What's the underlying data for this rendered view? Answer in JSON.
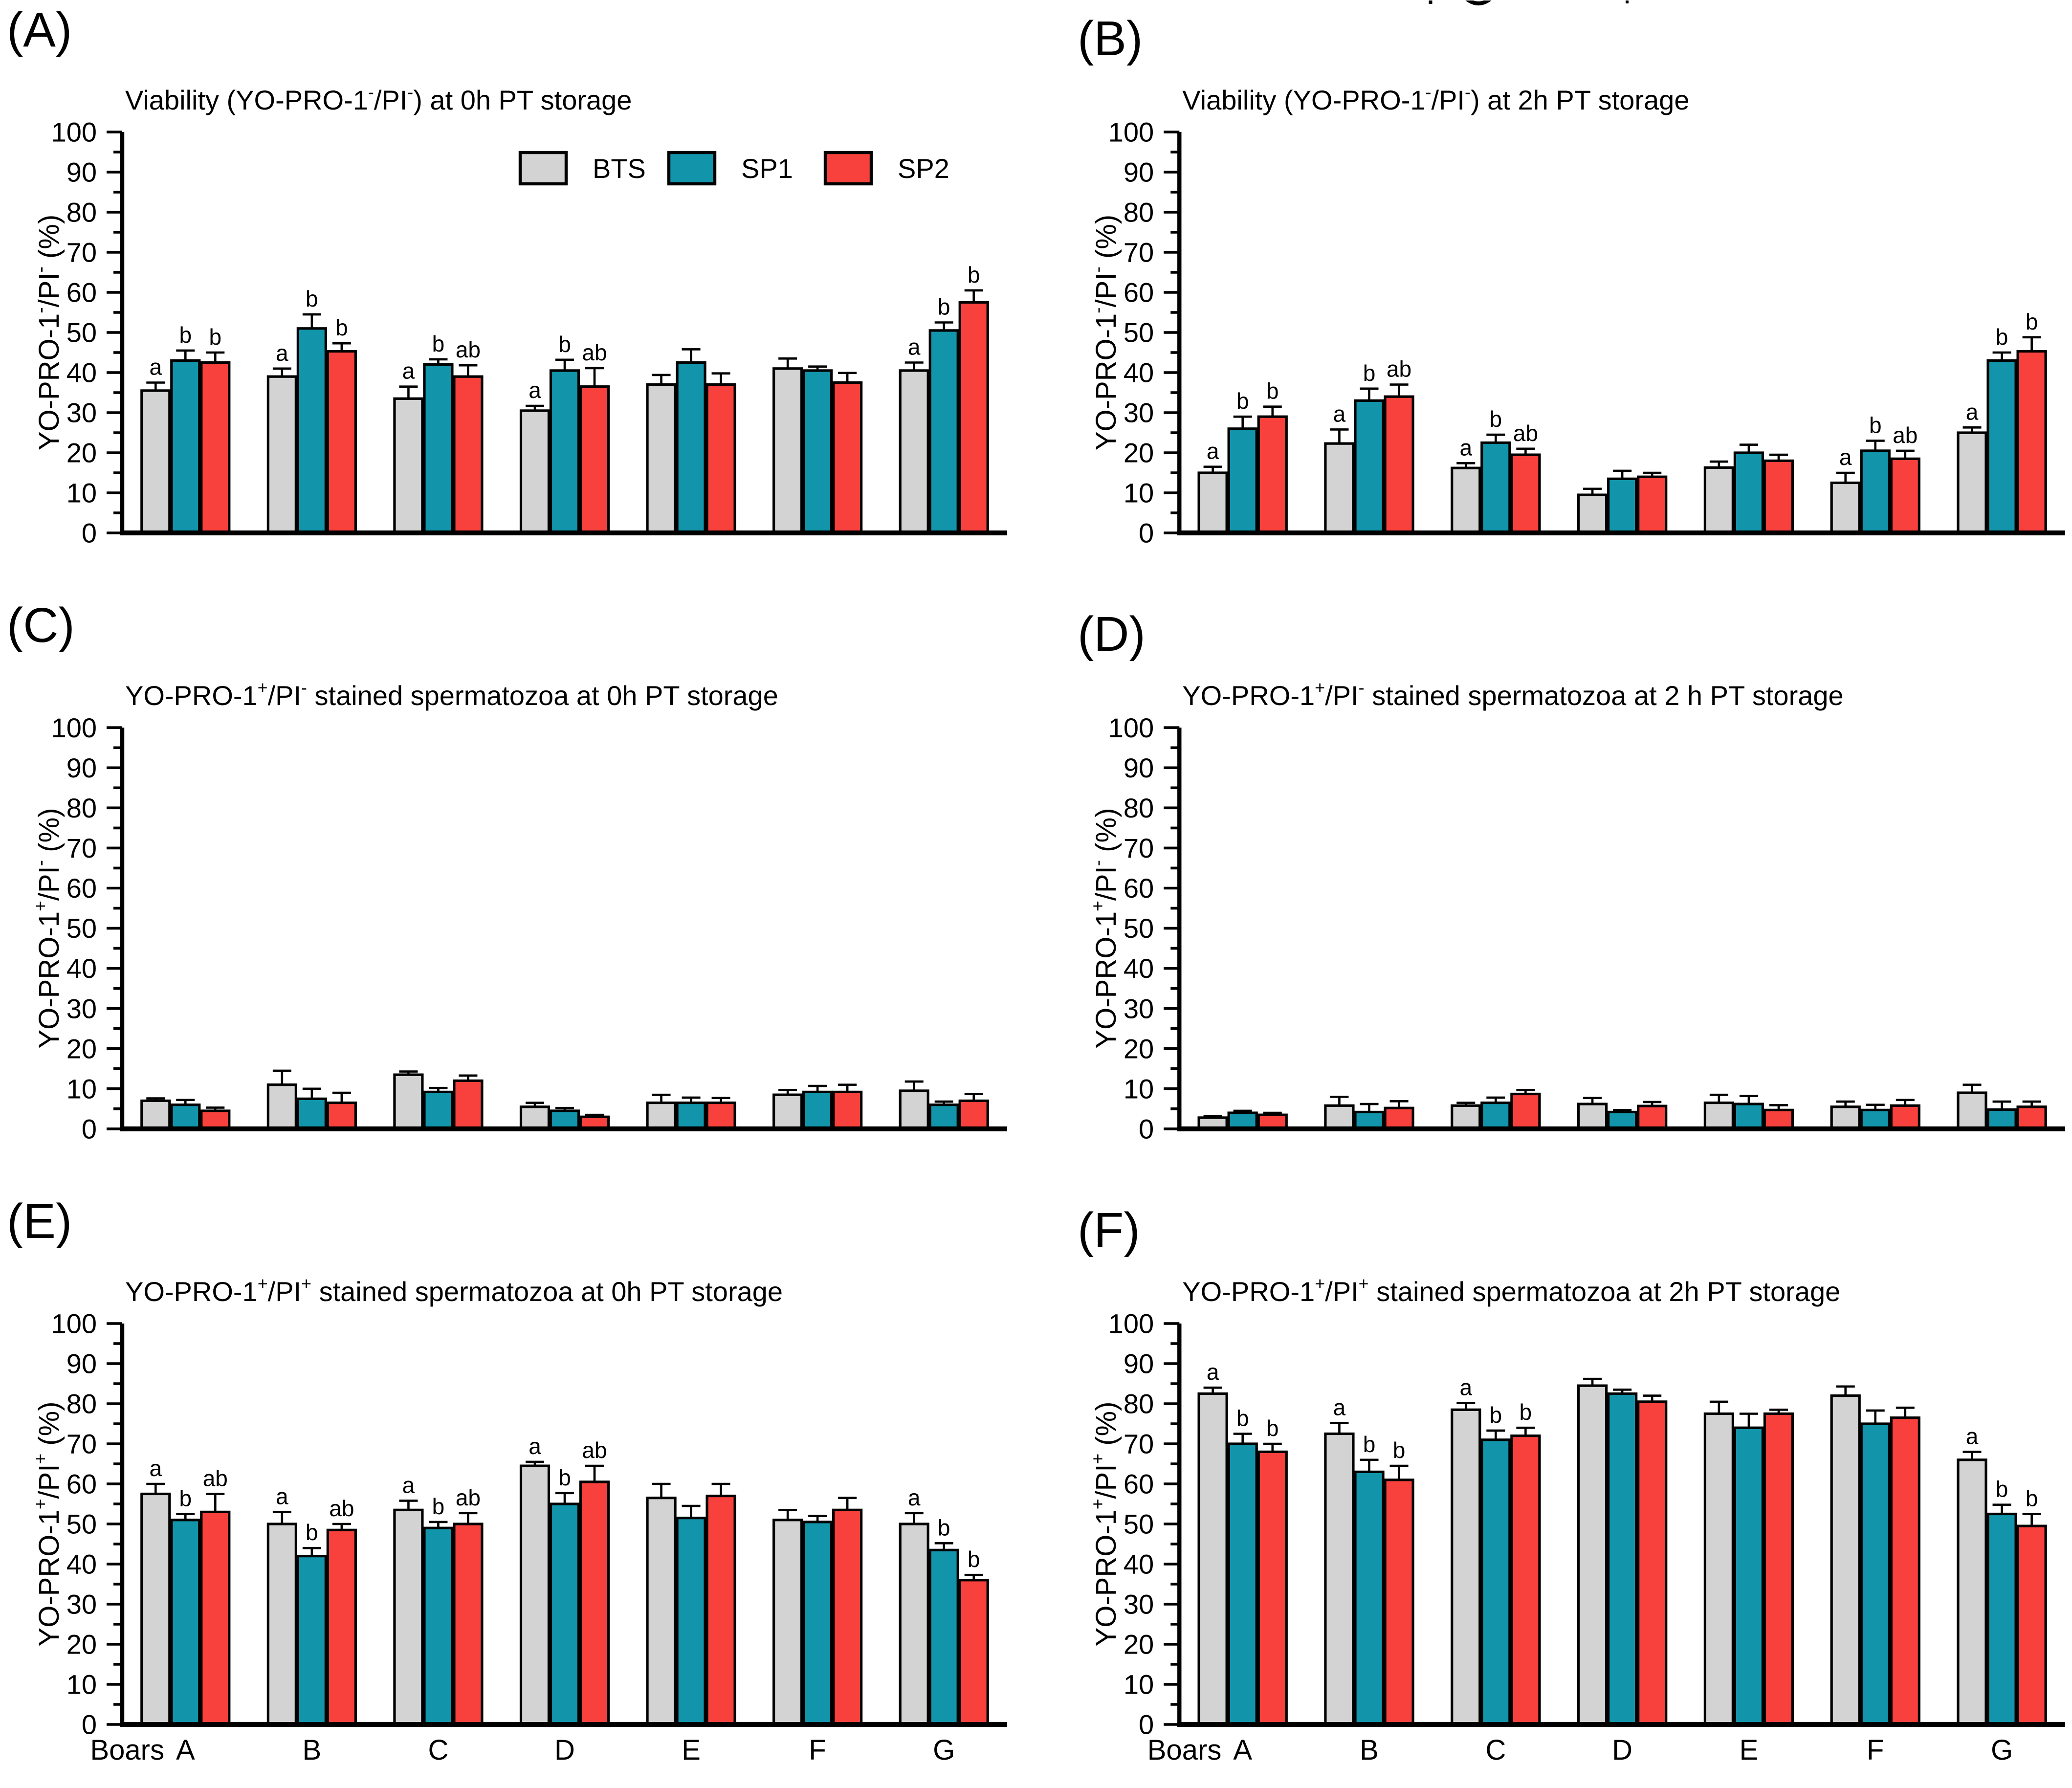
{
  "figure": {
    "background": "#ffffff",
    "bar_outline": "#000000",
    "panel_letters": [
      "(A)",
      "(B)",
      "(C)",
      "(D)",
      "(E)",
      "(F)"
    ],
    "x_axis_prefix": "Boars",
    "top_artifact_note": "clipped glyph fragments from line above"
  },
  "legend": {
    "entries": [
      {
        "label": "BTS",
        "color": "#d3d3d3"
      },
      {
        "label": "SP1",
        "color": "#1295aa"
      },
      {
        "label": "SP2",
        "color": "#f8413d"
      }
    ]
  },
  "chart_data": [
    {
      "panel": "(A)",
      "type": "bar",
      "title": "Viability (YO-PRO-1⁻/PI⁻) at 0h PT storage",
      "title_segments": [
        {
          "t": "Viability (YO-PRO-1"
        },
        {
          "t": "-",
          "sup": true
        },
        {
          "t": "/PI"
        },
        {
          "t": "-",
          "sup": true
        },
        {
          "t": ") at 0h PT storage"
        }
      ],
      "ylabel": "YO-PRO-1⁻/PI⁻ (%)",
      "ylabel_segments": [
        {
          "t": "YO-PRO-1"
        },
        {
          "t": "-",
          "sup": true
        },
        {
          "t": "/PI"
        },
        {
          "t": "-",
          "sup": true
        },
        {
          "t": " (%)"
        }
      ],
      "categories": [
        "A",
        "B",
        "C",
        "D",
        "E",
        "F",
        "G"
      ],
      "ylim": [
        0,
        100
      ],
      "ytick_step": 10,
      "yminor_step": 5,
      "grid": false,
      "legend_visible": true,
      "show_x_labels": false,
      "x_prefix": "Boars",
      "series": [
        {
          "name": "BTS",
          "color": "#d3d3d3",
          "values": [
            35.5,
            39,
            33.5,
            30.5,
            37,
            41,
            40.5
          ],
          "errors": [
            2,
            2,
            3,
            1.2,
            2.4,
            2.5,
            2
          ],
          "sig_letters": [
            "a",
            "a",
            "a",
            "a",
            "",
            "",
            "a"
          ]
        },
        {
          "name": "SP1",
          "color": "#1295aa",
          "values": [
            43,
            51,
            42,
            40.5,
            42.5,
            40.5,
            50.5
          ],
          "errors": [
            2.5,
            3.5,
            1.3,
            2.7,
            3.3,
            1,
            2
          ],
          "sig_letters": [
            "b",
            "b",
            "b",
            "b",
            "",
            "",
            "b"
          ]
        },
        {
          "name": "SP2",
          "color": "#f8413d",
          "values": [
            42.5,
            45.3,
            39,
            36.5,
            37,
            37.5,
            57.5
          ],
          "errors": [
            2.5,
            2,
            2.8,
            4.6,
            2.8,
            2.4,
            3
          ],
          "sig_letters": [
            "b",
            "b",
            "ab",
            "ab",
            "",
            "",
            "b"
          ]
        }
      ]
    },
    {
      "panel": "(B)",
      "type": "bar",
      "title": "Viability (YO-PRO-1⁻/PI⁻) at 2h PT storage",
      "title_segments": [
        {
          "t": "Viability (YO-PRO-1"
        },
        {
          "t": "-",
          "sup": true
        },
        {
          "t": "/PI"
        },
        {
          "t": "-",
          "sup": true
        },
        {
          "t": ") at 2h PT storage"
        }
      ],
      "ylabel": "YO-PRO-1⁻/PI⁻ (%)",
      "ylabel_segments": [
        {
          "t": "YO-PRO-1"
        },
        {
          "t": "-",
          "sup": true
        },
        {
          "t": "/PI"
        },
        {
          "t": "-",
          "sup": true
        },
        {
          "t": " (%)"
        }
      ],
      "categories": [
        "A",
        "B",
        "C",
        "D",
        "E",
        "F",
        "G"
      ],
      "ylim": [
        0,
        100
      ],
      "ytick_step": 10,
      "yminor_step": 5,
      "grid": false,
      "legend_visible": false,
      "show_x_labels": false,
      "x_prefix": "Boars",
      "series": [
        {
          "name": "BTS",
          "color": "#d3d3d3",
          "values": [
            15,
            22.3,
            16.2,
            9.5,
            16.3,
            12.5,
            25
          ],
          "errors": [
            1.5,
            3.5,
            1.2,
            1.5,
            1.5,
            2.5,
            1.3
          ],
          "sig_letters": [
            "a",
            "a",
            "a",
            "",
            "",
            "a",
            "a"
          ]
        },
        {
          "name": "SP1",
          "color": "#1295aa",
          "values": [
            26,
            33,
            22.5,
            13.5,
            20,
            20.5,
            43
          ],
          "errors": [
            3,
            3,
            2,
            2,
            2,
            2.5,
            2
          ],
          "sig_letters": [
            "b",
            "b",
            "b",
            "",
            "",
            "b",
            "b"
          ]
        },
        {
          "name": "SP2",
          "color": "#f8413d",
          "values": [
            29,
            34,
            19.5,
            14,
            18,
            18.5,
            45.3
          ],
          "errors": [
            2.5,
            3,
            1.5,
            1,
            1.5,
            2,
            3.5
          ],
          "sig_letters": [
            "b",
            "ab",
            "ab",
            "",
            "",
            "ab",
            "b"
          ]
        }
      ]
    },
    {
      "panel": "(C)",
      "type": "bar",
      "title": "YO-PRO-1⁺/PI⁻ stained spermatozoa at 0h PT storage",
      "title_segments": [
        {
          "t": "YO-PRO-1"
        },
        {
          "t": "+",
          "sup": true
        },
        {
          "t": "/PI"
        },
        {
          "t": "-",
          "sup": true
        },
        {
          "t": " stained spermatozoa at 0h PT storage"
        }
      ],
      "ylabel": "YO-PRO-1⁺/PI⁻ (%)",
      "ylabel_segments": [
        {
          "t": "YO-PRO-1"
        },
        {
          "t": "+",
          "sup": true
        },
        {
          "t": "/PI"
        },
        {
          "t": "-",
          "sup": true
        },
        {
          "t": " (%)"
        }
      ],
      "categories": [
        "A",
        "B",
        "C",
        "D",
        "E",
        "F",
        "G"
      ],
      "ylim": [
        0,
        100
      ],
      "ytick_step": 10,
      "yminor_step": 5,
      "grid": false,
      "legend_visible": false,
      "show_x_labels": false,
      "x_prefix": "Boars",
      "series": [
        {
          "name": "BTS",
          "color": "#d3d3d3",
          "values": [
            7,
            11,
            13.5,
            5.5,
            6.5,
            8.5,
            9.5
          ],
          "errors": [
            0.6,
            3.5,
            0.8,
            1,
            2,
            1.2,
            2.3
          ],
          "sig_letters": [
            "",
            "",
            "",
            "",
            "",
            "",
            ""
          ]
        },
        {
          "name": "SP1",
          "color": "#1295aa",
          "values": [
            6,
            7.5,
            9.2,
            4.5,
            6.5,
            9.2,
            6
          ],
          "errors": [
            1.2,
            2.5,
            1,
            0.7,
            1.3,
            1.5,
            0.8
          ],
          "sig_letters": [
            "",
            "",
            "",
            "",
            "",
            "",
            ""
          ]
        },
        {
          "name": "SP2",
          "color": "#f8413d",
          "values": [
            4.5,
            6.5,
            12,
            3,
            6.5,
            9.2,
            7
          ],
          "errors": [
            0.8,
            2.5,
            1.3,
            0.5,
            1.2,
            1.8,
            1.7
          ],
          "sig_letters": [
            "",
            "",
            "",
            "",
            "",
            "",
            ""
          ]
        }
      ]
    },
    {
      "panel": "(D)",
      "type": "bar",
      "title": "YO-PRO-1⁺/PI⁻ stained spermatozoa at 2 h PT storage",
      "title_segments": [
        {
          "t": "YO-PRO-1"
        },
        {
          "t": "+",
          "sup": true
        },
        {
          "t": "/PI"
        },
        {
          "t": "-",
          "sup": true
        },
        {
          "t": " stained spermatozoa at 2 h PT storage"
        }
      ],
      "ylabel": "YO-PRO-1⁺/PI⁻ (%)",
      "ylabel_segments": [
        {
          "t": "YO-PRO-1"
        },
        {
          "t": "+",
          "sup": true
        },
        {
          "t": "/PI"
        },
        {
          "t": "-",
          "sup": true
        },
        {
          "t": " (%)"
        }
      ],
      "categories": [
        "A",
        "B",
        "C",
        "D",
        "E",
        "F",
        "G"
      ],
      "ylim": [
        0,
        100
      ],
      "ytick_step": 10,
      "yminor_step": 5,
      "grid": false,
      "legend_visible": false,
      "show_x_labels": false,
      "x_prefix": "Boars",
      "series": [
        {
          "name": "BTS",
          "color": "#d3d3d3",
          "values": [
            2.8,
            5.8,
            5.8,
            6.2,
            6.5,
            5.5,
            9
          ],
          "errors": [
            0.4,
            2.2,
            0.7,
            1.5,
            2,
            1.3,
            2
          ],
          "sig_letters": [
            "",
            "",
            "",
            "",
            "",
            "",
            ""
          ]
        },
        {
          "name": "SP1",
          "color": "#1295aa",
          "values": [
            4,
            4.2,
            6.5,
            4.2,
            6.2,
            4.7,
            4.8
          ],
          "errors": [
            0.5,
            2,
            1.3,
            0.5,
            2,
            1.3,
            2
          ],
          "sig_letters": [
            "",
            "",
            "",
            "",
            "",
            "",
            ""
          ]
        },
        {
          "name": "SP2",
          "color": "#f8413d",
          "values": [
            3.5,
            5.2,
            8.7,
            5.7,
            4.7,
            5.8,
            5.5
          ],
          "errors": [
            0.5,
            1.7,
            1,
            1,
            1.2,
            1.4,
            1.3
          ],
          "sig_letters": [
            "",
            "",
            "",
            "",
            "",
            "",
            ""
          ]
        }
      ]
    },
    {
      "panel": "(E)",
      "type": "bar",
      "title": "YO-PRO-1⁺/PI⁺ stained spermatozoa at 0h PT storage",
      "title_segments": [
        {
          "t": "YO-PRO-1"
        },
        {
          "t": "+",
          "sup": true
        },
        {
          "t": "/PI"
        },
        {
          "t": "+",
          "sup": true
        },
        {
          "t": " stained spermatozoa at 0h PT storage"
        }
      ],
      "ylabel": "YO-PRO-1⁺/PI⁺ (%)",
      "ylabel_segments": [
        {
          "t": "YO-PRO-1"
        },
        {
          "t": "+",
          "sup": true
        },
        {
          "t": "/PI"
        },
        {
          "t": "+",
          "sup": true
        },
        {
          "t": " (%)"
        }
      ],
      "categories": [
        "A",
        "B",
        "C",
        "D",
        "E",
        "F",
        "G"
      ],
      "ylim": [
        0,
        100
      ],
      "ytick_step": 10,
      "yminor_step": 5,
      "grid": false,
      "legend_visible": false,
      "show_x_labels": true,
      "x_prefix": "Boars",
      "series": [
        {
          "name": "BTS",
          "color": "#d3d3d3",
          "values": [
            57.5,
            50,
            53.5,
            64.5,
            56.5,
            51,
            50
          ],
          "errors": [
            2.5,
            3,
            2.3,
            1,
            3.5,
            2.5,
            2.7
          ],
          "sig_letters": [
            "a",
            "a",
            "a",
            "a",
            "",
            "",
            "a"
          ]
        },
        {
          "name": "SP1",
          "color": "#1295aa",
          "values": [
            51,
            42,
            49,
            55,
            51.5,
            50.5,
            43.5
          ],
          "errors": [
            1.5,
            2,
            1.5,
            2.7,
            3,
            1.5,
            1.7
          ],
          "sig_letters": [
            "b",
            "b",
            "b",
            "b",
            "",
            "",
            "b"
          ]
        },
        {
          "name": "SP2",
          "color": "#f8413d",
          "values": [
            53,
            48.5,
            50,
            60.5,
            57,
            53.5,
            36
          ],
          "errors": [
            4.5,
            1.5,
            2.7,
            4,
            3,
            3,
            1.3
          ],
          "sig_letters": [
            "ab",
            "ab",
            "ab",
            "ab",
            "",
            "",
            "b"
          ]
        }
      ]
    },
    {
      "panel": "(F)",
      "type": "bar",
      "title": "YO-PRO-1⁺/PI⁺ stained spermatozoa at 2h PT storage",
      "title_segments": [
        {
          "t": "YO-PRO-1"
        },
        {
          "t": "+",
          "sup": true
        },
        {
          "t": "/PI"
        },
        {
          "t": "+",
          "sup": true
        },
        {
          "t": " stained spermatozoa at 2h PT storage"
        }
      ],
      "ylabel": "YO-PRO-1⁺/PI⁺ (%)",
      "ylabel_segments": [
        {
          "t": "YO-PRO-1"
        },
        {
          "t": "+",
          "sup": true
        },
        {
          "t": "/PI"
        },
        {
          "t": "+",
          "sup": true
        },
        {
          "t": " (%)"
        }
      ],
      "categories": [
        "A",
        "B",
        "C",
        "D",
        "E",
        "F",
        "G"
      ],
      "ylim": [
        0,
        100
      ],
      "ytick_step": 10,
      "yminor_step": 5,
      "grid": false,
      "legend_visible": false,
      "show_x_labels": true,
      "x_prefix": "Boars",
      "series": [
        {
          "name": "BTS",
          "color": "#d3d3d3",
          "values": [
            82.5,
            72.5,
            78.5,
            84.5,
            77.5,
            82,
            66
          ],
          "errors": [
            1.5,
            2.7,
            1.7,
            1.7,
            3,
            2.3,
            2
          ],
          "sig_letters": [
            "a",
            "a",
            "a",
            "",
            "",
            "",
            "a"
          ]
        },
        {
          "name": "SP1",
          "color": "#1295aa",
          "values": [
            70,
            63,
            71,
            82.5,
            74,
            75,
            52.5
          ],
          "errors": [
            2.5,
            3,
            2.3,
            1,
            3.5,
            3.3,
            2.3
          ],
          "sig_letters": [
            "b",
            "b",
            "b",
            "",
            "",
            "",
            "b"
          ]
        },
        {
          "name": "SP2",
          "color": "#f8413d",
          "values": [
            68,
            61,
            72,
            80.5,
            77.5,
            76.5,
            49.5
          ],
          "errors": [
            2,
            3.5,
            2,
            1.5,
            1,
            2.5,
            3
          ],
          "sig_letters": [
            "b",
            "b",
            "b",
            "",
            "",
            "",
            "b"
          ]
        }
      ]
    }
  ]
}
